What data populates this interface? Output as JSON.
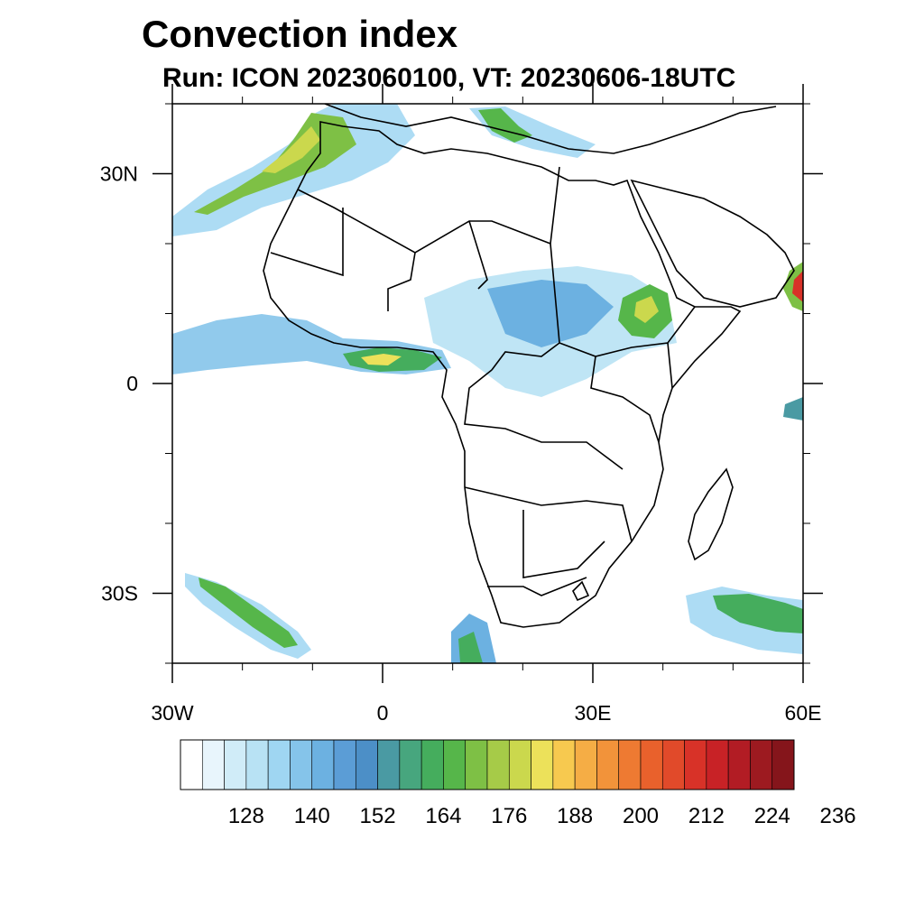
{
  "title": "Convection index",
  "subtitle": "Run: ICON 2023060100,  VT: 20230606-18UTC",
  "map": {
    "lon_range": [
      -30,
      60
    ],
    "lat_range": [
      -40,
      40
    ],
    "lat_ticks": [
      {
        "value": 30,
        "label": "30N"
      },
      {
        "value": 0,
        "label": "0"
      },
      {
        "value": -30,
        "label": "30S"
      }
    ],
    "lon_ticks": [
      {
        "value": -30,
        "label": "30W"
      },
      {
        "value": 0,
        "label": "0"
      },
      {
        "value": 30,
        "label": "30E"
      },
      {
        "value": 60,
        "label": "60E"
      }
    ]
  },
  "colorbar": {
    "colors": [
      "#ffffff",
      "#e8f5fc",
      "#d0ecf8",
      "#b8e2f4",
      "#9fd6f2",
      "#85c4ea",
      "#6cb1e1",
      "#5b9dd6",
      "#4c8fc7",
      "#4a9aa3",
      "#47a67e",
      "#45ad5d",
      "#56b64a",
      "#7ec045",
      "#a6cb48",
      "#cbd84d",
      "#ece15a",
      "#f7c94f",
      "#f5ad45",
      "#f2933a",
      "#ee7a32",
      "#e9612c",
      "#e14a2a",
      "#d83228",
      "#c82226",
      "#b21c24",
      "#9d1a20",
      "#85151b"
    ],
    "labels": [
      "128",
      "140",
      "152",
      "164",
      "176",
      "188",
      "200",
      "212",
      "224",
      "236"
    ]
  },
  "chart_data": {
    "type": "heatmap",
    "title": "Convection index",
    "subtitle": "Run: ICON 2023060100,  VT: 20230606-18UTC",
    "xlim": [
      -30,
      60
    ],
    "ylim": [
      -40,
      40
    ],
    "scale_levels": [
      128,
      140,
      152,
      164,
      176,
      188,
      200,
      212,
      224,
      236
    ]
  }
}
